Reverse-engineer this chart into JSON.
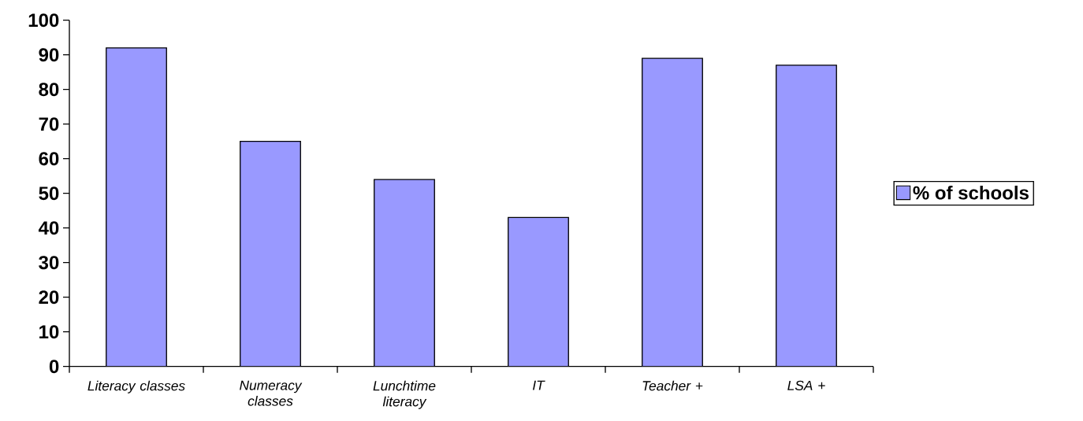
{
  "chart_data": {
    "type": "bar",
    "categories": [
      "Literacy classes",
      "Numeracy classes",
      "Lunchtime literacy",
      "IT",
      "Teacher +",
      "LSA +"
    ],
    "series": [
      {
        "name": "% of schools",
        "color": "#9999ff",
        "values": [
          92,
          65,
          54,
          43,
          89,
          87
        ]
      }
    ],
    "ylim": [
      0,
      100
    ],
    "yticks": [
      0,
      10,
      20,
      30,
      40,
      50,
      60,
      70,
      80,
      90,
      100
    ],
    "legend": "right",
    "grid": false
  }
}
